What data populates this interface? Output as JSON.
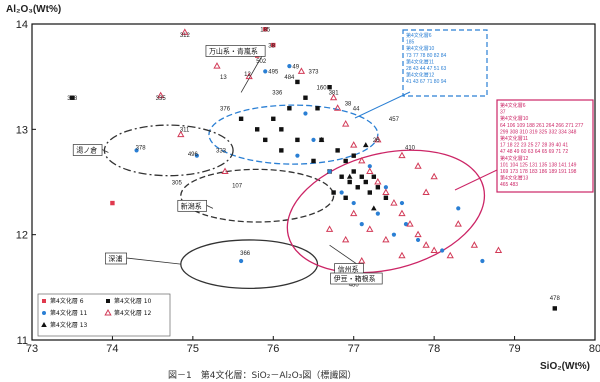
{
  "chart_data": {
    "type": "scatter",
    "title": "",
    "xlabel": "SiO₂(Wt%)",
    "ylabel": "Al₂O₃(Wt%)",
    "xlim": [
      73,
      80
    ],
    "ylim": [
      11,
      14
    ],
    "xticks": [
      "73",
      "74",
      "75",
      "76",
      "77",
      "78",
      "79",
      "80"
    ],
    "yticks": [
      "11",
      "12",
      "13",
      "14"
    ],
    "grid": false,
    "legend_position": "bottom-left",
    "caption": "図－1　第4文化層：SiO₂－Al₂O₃図（標識図）",
    "series": [
      {
        "name": "第4文化層 6",
        "marker": "square",
        "color": "#e0394e",
        "points": [
          [
            75.9,
            13.95
          ],
          [
            76.0,
            13.8
          ],
          [
            75.8,
            13.7
          ],
          [
            74.0,
            12.3
          ]
        ]
      },
      {
        "name": "第4文化層 10",
        "marker": "square",
        "color": "#111111",
        "points": [
          [
            73.5,
            13.3
          ],
          [
            79.5,
            11.3
          ],
          [
            75.6,
            13.1
          ],
          [
            75.8,
            13.0
          ],
          [
            75.9,
            12.9
          ],
          [
            76.0,
            13.1
          ],
          [
            76.1,
            12.8
          ],
          [
            76.2,
            13.2
          ],
          [
            76.3,
            12.9
          ],
          [
            76.4,
            13.3
          ],
          [
            76.5,
            12.7
          ],
          [
            76.6,
            12.9
          ],
          [
            76.7,
            12.6
          ],
          [
            76.8,
            12.8
          ],
          [
            76.85,
            12.55
          ],
          [
            76.9,
            12.7
          ],
          [
            76.95,
            12.5
          ],
          [
            77.0,
            12.6
          ],
          [
            77.05,
            12.45
          ],
          [
            77.1,
            12.55
          ],
          [
            77.15,
            12.5
          ],
          [
            77.2,
            12.4
          ],
          [
            77.3,
            12.45
          ],
          [
            77.4,
            12.35
          ],
          [
            76.55,
            13.2
          ],
          [
            76.7,
            13.4
          ],
          [
            76.3,
            13.45
          ],
          [
            76.1,
            13.0
          ],
          [
            77.0,
            12.75
          ],
          [
            76.75,
            12.4
          ],
          [
            76.9,
            12.35
          ],
          [
            77.25,
            12.55
          ]
        ]
      },
      {
        "name": "第4文化層 11",
        "marker": "circle",
        "color": "#2a7fd4",
        "points": [
          [
            74.3,
            12.8
          ],
          [
            75.05,
            12.75
          ],
          [
            75.6,
            11.75
          ],
          [
            75.9,
            13.55
          ],
          [
            76.2,
            13.6
          ],
          [
            76.4,
            13.15
          ],
          [
            76.7,
            12.6
          ],
          [
            76.85,
            12.4
          ],
          [
            77.0,
            12.3
          ],
          [
            77.1,
            12.1
          ],
          [
            77.3,
            12.2
          ],
          [
            77.5,
            12.0
          ],
          [
            77.8,
            11.95
          ],
          [
            78.1,
            11.85
          ],
          [
            78.6,
            11.75
          ],
          [
            77.0,
            11.55
          ],
          [
            77.2,
            12.65
          ],
          [
            77.4,
            12.45
          ],
          [
            77.6,
            12.3
          ],
          [
            76.5,
            12.9
          ],
          [
            76.3,
            12.75
          ],
          [
            78.3,
            12.25
          ],
          [
            77.65,
            12.1
          ]
        ]
      },
      {
        "name": "第4文化層 12",
        "marker": "triangle",
        "color": "#d23a57",
        "points": [
          [
            74.9,
            13.92
          ],
          [
            74.6,
            13.32
          ],
          [
            74.85,
            12.95
          ],
          [
            75.3,
            13.6
          ],
          [
            75.7,
            13.5
          ],
          [
            76.35,
            13.55
          ],
          [
            76.75,
            13.3
          ],
          [
            76.9,
            13.05
          ],
          [
            77.0,
            12.85
          ],
          [
            77.1,
            12.7
          ],
          [
            77.2,
            12.6
          ],
          [
            77.3,
            12.5
          ],
          [
            77.4,
            12.4
          ],
          [
            77.5,
            12.3
          ],
          [
            77.6,
            12.2
          ],
          [
            77.7,
            12.1
          ],
          [
            77.8,
            12.0
          ],
          [
            77.9,
            11.9
          ],
          [
            78.0,
            11.85
          ],
          [
            78.2,
            11.8
          ],
          [
            78.5,
            11.9
          ],
          [
            78.8,
            11.85
          ],
          [
            77.0,
            12.2
          ],
          [
            77.2,
            12.05
          ],
          [
            77.4,
            11.95
          ],
          [
            77.6,
            11.8
          ],
          [
            76.7,
            12.05
          ],
          [
            76.9,
            11.95
          ],
          [
            77.3,
            12.9
          ],
          [
            77.6,
            12.75
          ],
          [
            77.8,
            12.65
          ],
          [
            78.0,
            12.55
          ],
          [
            76.8,
            13.2
          ],
          [
            75.4,
            12.6
          ],
          [
            77.1,
            11.75
          ],
          [
            77.9,
            12.4
          ],
          [
            78.3,
            12.1
          ]
        ]
      },
      {
        "name": "第4文化層 13",
        "marker": "triangle-filled",
        "color": "#111111",
        "points": [
          [
            76.6,
            12.9
          ],
          [
            76.95,
            12.55
          ],
          [
            77.25,
            12.25
          ],
          [
            77.15,
            12.85
          ]
        ]
      }
    ],
    "point_labels": [
      {
        "text": "185",
        "x": 75.9,
        "y": 13.9
      },
      {
        "text": "312",
        "x": 74.9,
        "y": 13.85
      },
      {
        "text": "38",
        "x": 76.0,
        "y": 13.75
      },
      {
        "text": "502",
        "x": 75.85,
        "y": 13.6
      },
      {
        "text": "495",
        "x": 76.0,
        "y": 13.5
      },
      {
        "text": "484",
        "x": 76.2,
        "y": 13.45
      },
      {
        "text": "49",
        "x": 76.3,
        "y": 13.55
      },
      {
        "text": "373",
        "x": 76.5,
        "y": 13.5
      },
      {
        "text": "13",
        "x": 75.4,
        "y": 13.45
      },
      {
        "text": "12",
        "x": 75.7,
        "y": 13.48
      },
      {
        "text": "160",
        "x": 76.6,
        "y": 13.35
      },
      {
        "text": "336",
        "x": 76.05,
        "y": 13.3
      },
      {
        "text": "381",
        "x": 76.75,
        "y": 13.3
      },
      {
        "text": "328",
        "x": 73.5,
        "y": 13.25
      },
      {
        "text": "335",
        "x": 74.6,
        "y": 13.25
      },
      {
        "text": "376",
        "x": 75.4,
        "y": 13.15
      },
      {
        "text": "38",
        "x": 76.95,
        "y": 13.2
      },
      {
        "text": "44",
        "x": 77.05,
        "y": 13.15
      },
      {
        "text": "457",
        "x": 77.5,
        "y": 13.05
      },
      {
        "text": "311",
        "x": 74.9,
        "y": 12.95
      },
      {
        "text": "378",
        "x": 74.35,
        "y": 12.78
      },
      {
        "text": "496",
        "x": 75.0,
        "y": 12.72
      },
      {
        "text": "333",
        "x": 75.35,
        "y": 12.75
      },
      {
        "text": "26",
        "x": 77.3,
        "y": 12.85
      },
      {
        "text": "410",
        "x": 77.7,
        "y": 12.78
      },
      {
        "text": "305",
        "x": 74.8,
        "y": 12.45
      },
      {
        "text": "107",
        "x": 75.55,
        "y": 12.42
      },
      {
        "text": "366",
        "x": 75.65,
        "y": 11.78
      },
      {
        "text": "480",
        "x": 77.0,
        "y": 11.48
      },
      {
        "text": "478",
        "x": 79.5,
        "y": 11.35
      }
    ],
    "groups": [
      {
        "label": "万山系・青嵐系",
        "cx": 76.25,
        "cy": 12.95,
        "rx": 1.05,
        "ry": 0.28,
        "color": "#2a7fd4",
        "style": "dashed"
      },
      {
        "label": "湯ノ倉",
        "cx": 74.7,
        "cy": 12.8,
        "rx": 0.8,
        "ry": 0.24,
        "color": "#333333",
        "style": "dashdot"
      },
      {
        "label": "新潟系",
        "cx": 75.8,
        "cy": 12.37,
        "rx": 0.95,
        "ry": 0.25,
        "color": "#333333",
        "style": "dashed"
      },
      {
        "label": "深浦",
        "cx": 75.7,
        "cy": 11.72,
        "rx": 0.85,
        "ry": 0.23,
        "color": "#333333",
        "style": "solid"
      },
      {
        "label": "信州系\n伊豆・箱根系",
        "cx": 77.4,
        "cy": 12.22,
        "rx": 1.25,
        "ry": 0.55,
        "color": "#cc2566",
        "style": "solid",
        "rotate": -14
      }
    ],
    "group_label_positions": [
      {
        "label": "万山系・青嵐系",
        "x": 75.2,
        "y": 13.72
      },
      {
        "label": "湯ノ倉",
        "x": 73.55,
        "y": 12.78
      },
      {
        "label": "新潟系",
        "x": 74.85,
        "y": 12.25
      },
      {
        "label": "深浦",
        "x": 73.95,
        "y": 11.75
      },
      {
        "label": "信州系",
        "x": 76.8,
        "y": 11.65
      },
      {
        "label": "伊豆・箱根系",
        "x": 76.75,
        "y": 11.56
      }
    ]
  },
  "legend": {
    "items": [
      {
        "label": "第4文化層 6",
        "marker": "square",
        "color": "#e0394e"
      },
      {
        "label": "第4文化層 10",
        "marker": "square",
        "color": "#111111"
      },
      {
        "label": "第4文化層 11",
        "marker": "circle",
        "color": "#2a7fd4"
      },
      {
        "label": "第4文化層 12",
        "marker": "triangle",
        "color": "#d23a57"
      },
      {
        "label": "第4文化層 13",
        "marker": "triangle-filled",
        "color": "#111111"
      }
    ]
  },
  "callouts": {
    "blue_box": {
      "color": "#2a7fd4",
      "lines": [
        "第4文化層6",
        "185",
        "第4文化層10",
        "73 77 78 80 82 84",
        "第4文化層11",
        "28 43 44 47 51 63",
        "第4文化層12",
        "41 43 67 71 80 94"
      ]
    },
    "magenta_box": {
      "color": "#cc2566",
      "lines": [
        "第4文化層6",
        "37",
        "第4文化層10",
        "64 106 109 188 261 264 266 271 277",
        "299 308 310 319 325 332 334 348",
        "第4文化層11",
        "17 18 22 23 25 27 28 39 40 41",
        "47 48 49 60 63 64 65 69 71 72",
        "第4文化層12",
        "101 104 125 131 135 138 141 149",
        "169 173 178 183 186 189 191 198",
        "第4文化層13",
        "465 483"
      ]
    }
  }
}
